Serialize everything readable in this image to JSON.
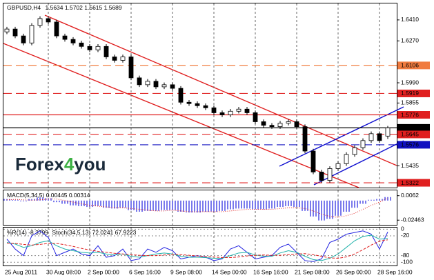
{
  "chart_data": [
    {
      "type": "candlestick",
      "title": "GBPUSD,H4",
      "open": [
        1.633,
        1.6349,
        1.6303,
        1.6256,
        1.6373,
        1.6419,
        1.6396,
        1.6303,
        1.628,
        1.6256,
        1.6233,
        1.621,
        1.6233,
        1.6163,
        1.614,
        1.6163,
        1.6023,
        1.5977,
        1.6,
        1.5963,
        1.5977,
        1.5953,
        1.586,
        1.5851,
        1.5837,
        1.5823,
        1.579,
        1.5776,
        1.58,
        1.5814,
        1.579,
        1.573,
        1.5706,
        1.5697,
        1.572,
        1.573,
        1.5697,
        1.5534,
        1.5394,
        1.5338,
        1.5417,
        1.545,
        1.5511,
        1.5557,
        1.5604,
        1.565,
        1.5634
      ],
      "high": [
        1.6364,
        1.6364,
        1.6318,
        1.6388,
        1.6434,
        1.6434,
        1.6411,
        1.6318,
        1.6295,
        1.6271,
        1.6248,
        1.6248,
        1.6248,
        1.6178,
        1.6178,
        1.6178,
        1.6038,
        1.6015,
        1.6015,
        1.5992,
        1.5992,
        1.5968,
        1.5875,
        1.5866,
        1.5852,
        1.5838,
        1.5805,
        1.5815,
        1.5829,
        1.5829,
        1.5805,
        1.5745,
        1.5721,
        1.5735,
        1.5745,
        1.5745,
        1.5712,
        1.5549,
        1.5409,
        1.5432,
        1.5465,
        1.5526,
        1.5572,
        1.5619,
        1.5665,
        1.5665,
        1.5702
      ],
      "low": [
        1.6315,
        1.6288,
        1.6241,
        1.6241,
        1.6358,
        1.6381,
        1.6288,
        1.6265,
        1.6241,
        1.6218,
        1.6195,
        1.6195,
        1.6148,
        1.6125,
        1.6125,
        1.6008,
        1.5962,
        1.5962,
        1.5948,
        1.5948,
        1.5938,
        1.5845,
        1.5836,
        1.5822,
        1.5808,
        1.5775,
        1.5761,
        1.5761,
        1.5785,
        1.5775,
        1.5715,
        1.5691,
        1.5682,
        1.5682,
        1.5705,
        1.5682,
        1.5519,
        1.5379,
        1.5323,
        1.5323,
        1.5402,
        1.5435,
        1.5496,
        1.5542,
        1.5589,
        1.5589,
        1.5615
      ],
      "close": [
        1.6349,
        1.6303,
        1.6256,
        1.6373,
        1.6419,
        1.6396,
        1.6303,
        1.628,
        1.6256,
        1.6233,
        1.621,
        1.6233,
        1.6163,
        1.614,
        1.6163,
        1.6023,
        1.5977,
        1.6,
        1.5963,
        1.5977,
        1.5953,
        1.586,
        1.5851,
        1.5837,
        1.5823,
        1.579,
        1.5776,
        1.58,
        1.5814,
        1.579,
        1.573,
        1.5706,
        1.5697,
        1.572,
        1.573,
        1.5697,
        1.5534,
        1.5394,
        1.5338,
        1.5417,
        1.545,
        1.5511,
        1.5557,
        1.5604,
        1.565,
        1.5604,
        1.5689
      ],
      "up_color": "#ffffff",
      "down_color": "#000000",
      "ylim": [
        1.529,
        1.652
      ],
      "yticks": [
        {
          "value": 1.641,
          "label": "1.6410"
        },
        {
          "value": 1.627,
          "label": "1.6270"
        },
        {
          "value": 1.599,
          "label": "1.5990"
        },
        1.5855,
        1.5435
      ],
      "xticks": [
        {
          "value": 0,
          "label": "25 Aug 2011"
        },
        {
          "value": 5,
          "label": "30 Aug 08:00"
        },
        {
          "value": 10,
          "label": "2 Sep 00:00"
        },
        {
          "value": 15,
          "label": "6 Sep 16:00"
        },
        {
          "value": 20,
          "label": "9 Sep 08:00"
        },
        {
          "value": 25,
          "label": "14 Sep 00:00"
        },
        {
          "value": 30,
          "label": "16 Sep 16:00"
        },
        {
          "value": 35,
          "label": "21 Sep 08:00"
        },
        {
          "value": 40,
          "label": "26 Sep 00:00"
        },
        {
          "value": 45,
          "label": "28 Sep 16:00"
        }
      ],
      "levels": [
        {
          "value": 1.6106,
          "color": "#f07b3f",
          "style": "dashed"
        },
        {
          "value": 1.5919,
          "color": "#e02020",
          "style": "dashed"
        },
        {
          "value": 1.5776,
          "color": "#e02020",
          "style": "solid"
        },
        {
          "value": 1.5689,
          "color": "#000000",
          "style": "solid"
        },
        {
          "value": 1.5645,
          "color": "#e02020",
          "style": "dashed"
        },
        {
          "value": 1.5576,
          "color": "#1010c0",
          "style": "dashed"
        },
        {
          "value": 1.5322,
          "color": "#e02020",
          "style": "dashed"
        }
      ],
      "logo": [
        "Forex",
        "4",
        "you"
      ]
    },
    {
      "type": "bar",
      "series": [
        {
          "name": "MACD(5,34,5)",
          "color": "#2020e0",
          "values": [
            0.002,
            0.001,
            -0.001,
            0.002,
            0.004,
            0.003,
            -0.002,
            -0.004,
            -0.006,
            -0.007,
            -0.008,
            -0.007,
            -0.009,
            -0.01,
            -0.009,
            -0.012,
            -0.014,
            -0.013,
            -0.013,
            -0.012,
            -0.012,
            -0.014,
            -0.015,
            -0.015,
            -0.014,
            -0.014,
            -0.013,
            -0.011,
            -0.01,
            -0.01,
            -0.011,
            -0.011,
            -0.01,
            -0.008,
            -0.007,
            -0.008,
            -0.013,
            -0.02,
            -0.025,
            -0.023,
            -0.019,
            -0.014,
            -0.009,
            -0.004,
            0.001,
            0.002,
            0.00445
          ]
        },
        {
          "color": "#e02020",
          "style": "dotted",
          "values": [
            0.001,
            0.0015,
            0.001,
            0.0005,
            0.001,
            0.002,
            0.002,
            0,
            -0.002,
            -0.004,
            -0.006,
            -0.007,
            -0.008,
            -0.009,
            -0.009,
            -0.01,
            -0.011,
            -0.012,
            -0.013,
            -0.013,
            -0.012,
            -0.013,
            -0.014,
            -0.014,
            -0.014,
            -0.014,
            -0.014,
            -0.013,
            -0.012,
            -0.011,
            -0.011,
            -0.011,
            -0.011,
            -0.01,
            -0.009,
            -0.009,
            -0.01,
            -0.013,
            -0.017,
            -0.02,
            -0.021,
            -0.019,
            -0.016,
            -0.011,
            -0.006,
            -0.002,
            0.00314
          ]
        }
      ],
      "ylim": [
        -0.0305,
        0.0129
      ],
      "yticks": [
        0.0062,
        -0.02463
      ]
    },
    {
      "type": "line",
      "series": [
        {
          "name": "%R(14)",
          "color": "#2020e0",
          "values": [
            -30,
            -60,
            -80,
            -20,
            -5,
            -25,
            -80,
            -70,
            -60,
            -75,
            -80,
            -50,
            -85,
            -80,
            -60,
            -95,
            -90,
            -60,
            -70,
            -55,
            -65,
            -90,
            -85,
            -80,
            -85,
            -95,
            -90,
            -60,
            -50,
            -70,
            -90,
            -85,
            -80,
            -55,
            -45,
            -70,
            -95,
            -98,
            -90,
            -40,
            -30,
            -15,
            -10,
            -5,
            -15,
            -60,
            -8.3799
          ]
        },
        {
          "name": "Stoch(34,5,13)",
          "color": "#20b2aa",
          "axis": "y2",
          "values": [
            60,
            55,
            45,
            50,
            60,
            65,
            50,
            40,
            35,
            30,
            28,
            30,
            25,
            22,
            25,
            18,
            15,
            20,
            25,
            28,
            25,
            18,
            15,
            15,
            14,
            12,
            12,
            20,
            28,
            30,
            22,
            18,
            18,
            28,
            35,
            30,
            18,
            8,
            5,
            12,
            25,
            45,
            65,
            78,
            82,
            70,
            72.0241
          ]
        },
        {
          "color": "#e02020",
          "style": "dashed",
          "axis": "y2",
          "values": [
            58,
            57,
            54,
            52,
            54,
            57,
            57,
            53,
            48,
            42,
            37,
            33,
            30,
            27,
            25,
            23,
            21,
            20,
            20,
            22,
            24,
            23,
            21,
            19,
            17,
            16,
            14,
            14,
            16,
            19,
            21,
            22,
            21,
            21,
            23,
            25,
            26,
            23,
            18,
            13,
            12,
            16,
            25,
            38,
            52,
            64,
            67.9223
          ]
        }
      ],
      "ylim": [
        -110,
        5
      ],
      "yticks": [
        0,
        -20,
        -80,
        -100
      ],
      "y2lim": [
        -10,
        105
      ]
    }
  ]
}
